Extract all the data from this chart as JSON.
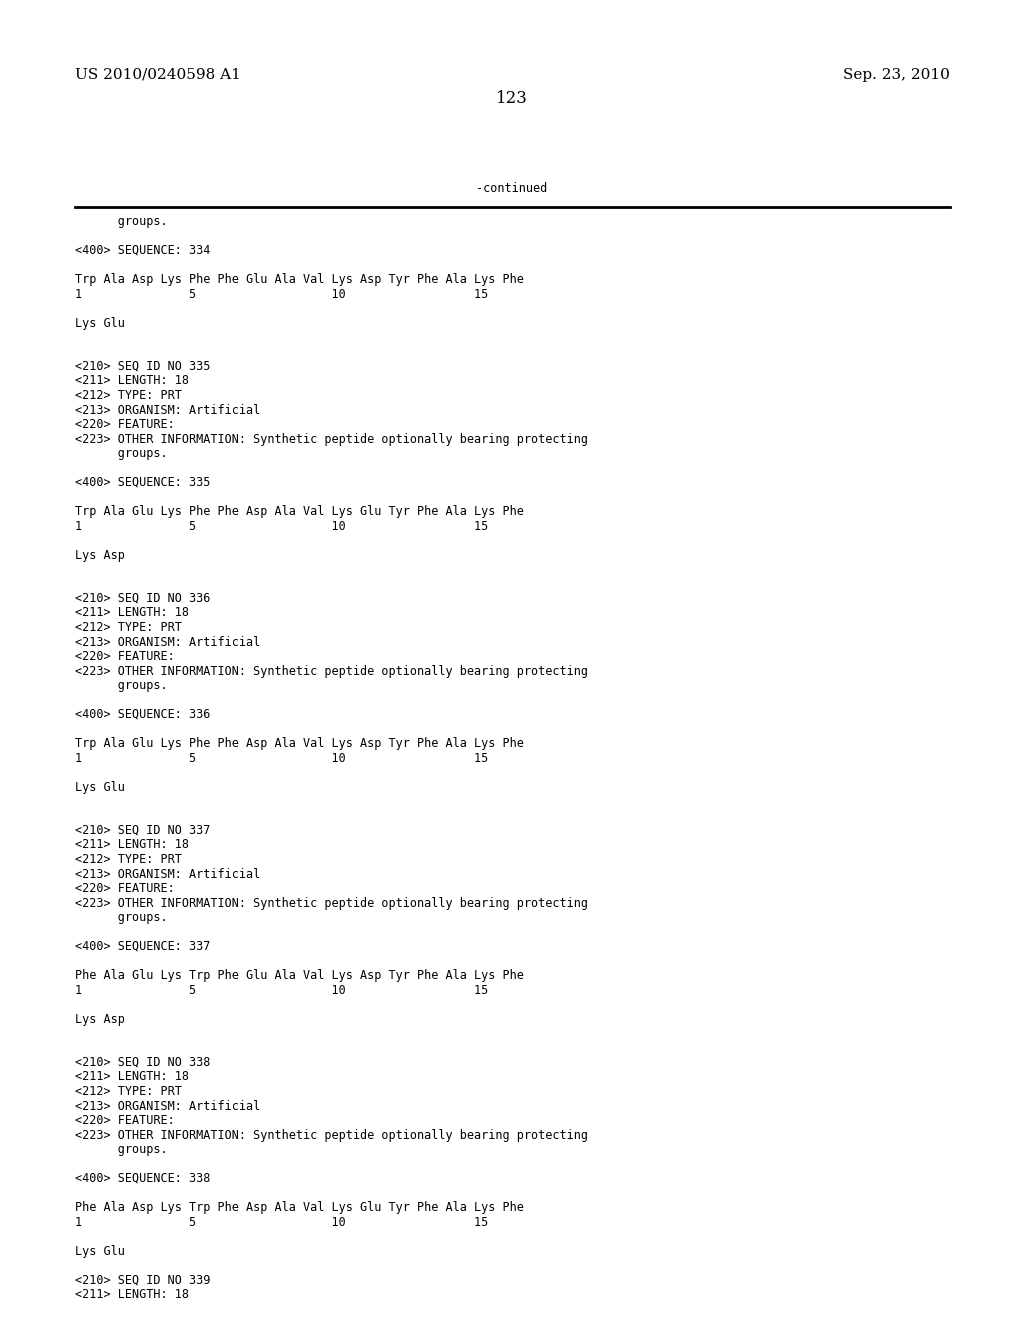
{
  "header_left": "US 2010/0240598 A1",
  "header_right": "Sep. 23, 2010",
  "page_number": "123",
  "continued_label": "-continued",
  "background_color": "#ffffff",
  "text_color": "#000000",
  "font_size_header": 11.0,
  "font_size_page": 12.0,
  "font_size_mono": 8.5,
  "lines": [
    "      groups.",
    "",
    "<400> SEQUENCE: 334",
    "",
    "Trp Ala Asp Lys Phe Phe Glu Ala Val Lys Asp Tyr Phe Ala Lys Phe",
    "1               5                   10                  15",
    "",
    "Lys Glu",
    "",
    "",
    "<210> SEQ ID NO 335",
    "<211> LENGTH: 18",
    "<212> TYPE: PRT",
    "<213> ORGANISM: Artificial",
    "<220> FEATURE:",
    "<223> OTHER INFORMATION: Synthetic peptide optionally bearing protecting",
    "      groups.",
    "",
    "<400> SEQUENCE: 335",
    "",
    "Trp Ala Glu Lys Phe Phe Asp Ala Val Lys Glu Tyr Phe Ala Lys Phe",
    "1               5                   10                  15",
    "",
    "Lys Asp",
    "",
    "",
    "<210> SEQ ID NO 336",
    "<211> LENGTH: 18",
    "<212> TYPE: PRT",
    "<213> ORGANISM: Artificial",
    "<220> FEATURE:",
    "<223> OTHER INFORMATION: Synthetic peptide optionally bearing protecting",
    "      groups.",
    "",
    "<400> SEQUENCE: 336",
    "",
    "Trp Ala Glu Lys Phe Phe Asp Ala Val Lys Asp Tyr Phe Ala Lys Phe",
    "1               5                   10                  15",
    "",
    "Lys Glu",
    "",
    "",
    "<210> SEQ ID NO 337",
    "<211> LENGTH: 18",
    "<212> TYPE: PRT",
    "<213> ORGANISM: Artificial",
    "<220> FEATURE:",
    "<223> OTHER INFORMATION: Synthetic peptide optionally bearing protecting",
    "      groups.",
    "",
    "<400> SEQUENCE: 337",
    "",
    "Phe Ala Glu Lys Trp Phe Glu Ala Val Lys Asp Tyr Phe Ala Lys Phe",
    "1               5                   10                  15",
    "",
    "Lys Asp",
    "",
    "",
    "<210> SEQ ID NO 338",
    "<211> LENGTH: 18",
    "<212> TYPE: PRT",
    "<213> ORGANISM: Artificial",
    "<220> FEATURE:",
    "<223> OTHER INFORMATION: Synthetic peptide optionally bearing protecting",
    "      groups.",
    "",
    "<400> SEQUENCE: 338",
    "",
    "Phe Ala Asp Lys Trp Phe Asp Ala Val Lys Glu Tyr Phe Ala Lys Phe",
    "1               5                   10                  15",
    "",
    "Lys Glu",
    "",
    "<210> SEQ ID NO 339",
    "<211> LENGTH: 18"
  ]
}
